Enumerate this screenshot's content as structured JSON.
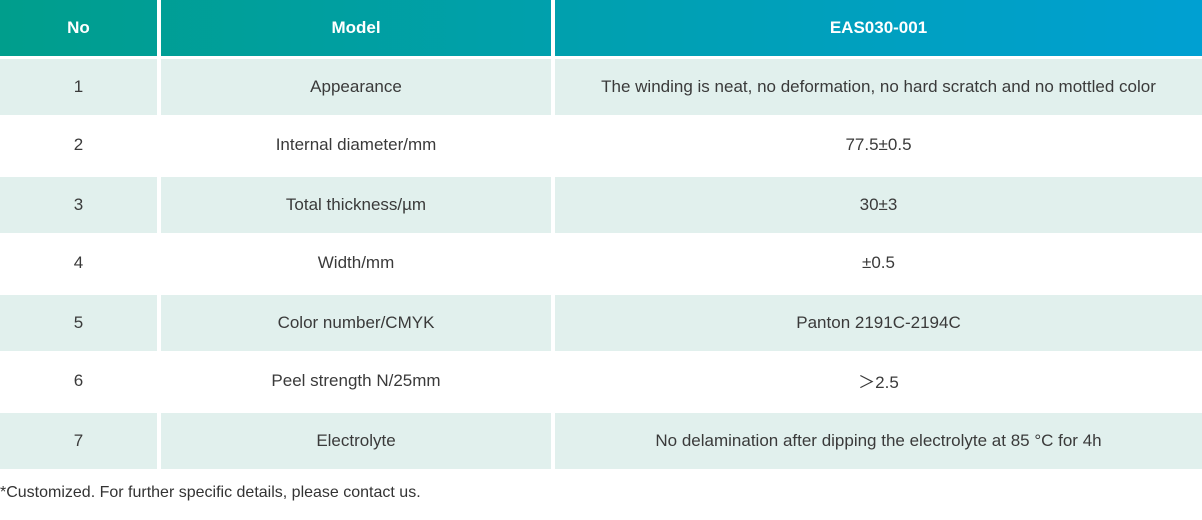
{
  "header": {
    "no": "No",
    "model": "Model",
    "product": "EAS030-001"
  },
  "rows": [
    {
      "no": "1",
      "item": "Appearance",
      "value": "The winding is neat, no deformation, no hard scratch and no mottled color"
    },
    {
      "no": "2",
      "item": "Internal diameter/mm",
      "value": "77.5±0.5"
    },
    {
      "no": "3",
      "item": "Total thickness/µm",
      "value": "30±3"
    },
    {
      "no": "4",
      "item": "Width/mm",
      "value": "±0.5"
    },
    {
      "no": "5",
      "item": "Color number/CMYK",
      "value": "Panton 2191C-2194C"
    },
    {
      "no": "6",
      "item": "Peel strength N/25mm",
      "value": "＞2.5"
    },
    {
      "no": "7",
      "item": "Electrolyte",
      "value": "No delamination after dipping the electrolyte at 85 °C for 4h"
    }
  ],
  "footnote": "*Customized. For further specific details, please contact us.",
  "colors": {
    "header_start": "#009e8c",
    "header_end": "#00a0d2",
    "shaded_row": "#e1f0ed"
  }
}
